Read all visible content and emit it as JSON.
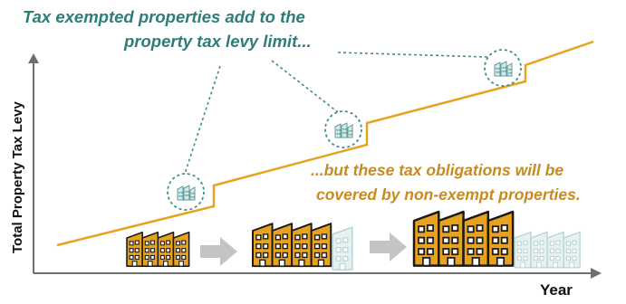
{
  "annotation_top": {
    "line1": "Tax exempted properties add to the",
    "line2": "property tax levy limit..."
  },
  "annotation_bottom": {
    "line1": "...but these tax obligations will be",
    "line2": "covered by non-exempt properties."
  },
  "axes": {
    "ylabel": "Total Property Tax Levy",
    "xlabel": "Year"
  },
  "colors": {
    "teal": "#2f7d7a",
    "teal_dash": "#3f8f8b",
    "gold": "#e7a220",
    "gold_text": "#c98a1f",
    "pale_building": "#d7e8e8",
    "arrow": "#c4c4c4",
    "axis": "#6f6f6f"
  },
  "icons": {
    "small_building": "building-icon",
    "arrow": "right-arrow-icon"
  },
  "stages": [
    {
      "name": "stage-1",
      "taxed_buildings": 4,
      "exempt_buildings": 0
    },
    {
      "name": "stage-2",
      "taxed_buildings": 4,
      "exempt_buildings": 1
    },
    {
      "name": "stage-3",
      "taxed_buildings": 4,
      "exempt_buildings": 4
    }
  ]
}
